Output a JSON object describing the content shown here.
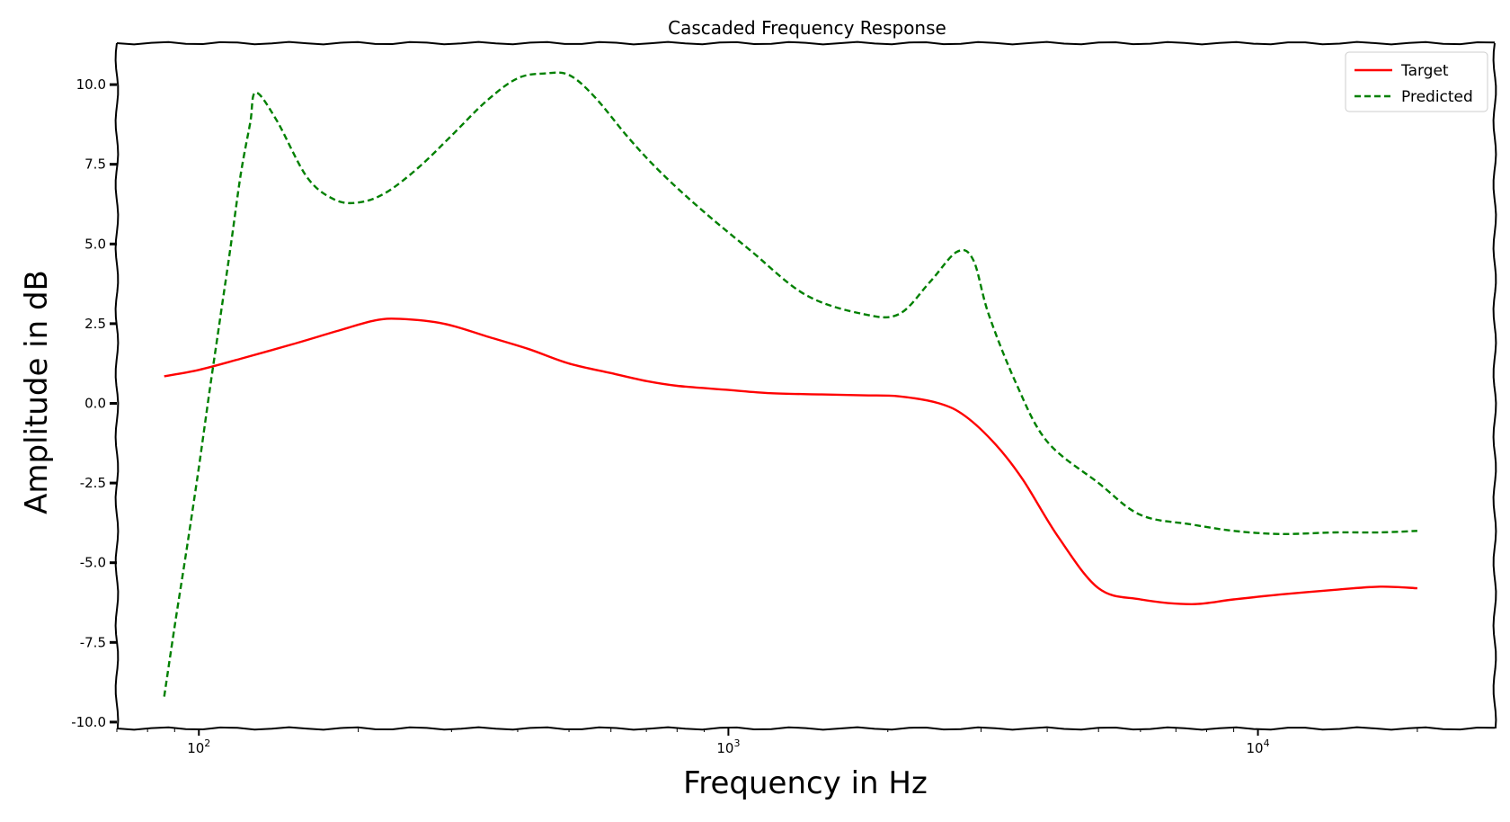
{
  "chart_data": {
    "type": "line",
    "title": "Cascaded Frequency Response",
    "xlabel": "Frequency in Hz",
    "ylabel": "Amplitude in dB",
    "xscale": "log",
    "xlim": [
      70,
      28000
    ],
    "ylim": [
      -10.2,
      11.3
    ],
    "grid": false,
    "legend_position": "top-right",
    "yticks": [
      {
        "value": -10.0,
        "label": "-10.0"
      },
      {
        "value": -7.5,
        "label": "-7.5"
      },
      {
        "value": -5.0,
        "label": "-5.0"
      },
      {
        "value": -2.5,
        "label": "-2.5"
      },
      {
        "value": 0.0,
        "label": "0.0"
      },
      {
        "value": 2.5,
        "label": "2.5"
      },
      {
        "value": 5.0,
        "label": "5.0"
      },
      {
        "value": 7.5,
        "label": "7.5"
      },
      {
        "value": 10.0,
        "label": "10.0"
      }
    ],
    "xticks": [
      {
        "value": 100,
        "base": "10",
        "exp": "2"
      },
      {
        "value": 1000,
        "base": "10",
        "exp": "3"
      },
      {
        "value": 10000,
        "base": "10",
        "exp": "4"
      }
    ],
    "series": [
      {
        "name": "Target",
        "color": "#ff0000",
        "style": "solid",
        "x": [
          86,
          100,
          120,
          150,
          185,
          215,
          240,
          290,
          350,
          420,
          500,
          600,
          700,
          800,
          1000,
          1200,
          1500,
          1800,
          2100,
          2500,
          2800,
          3200,
          3600,
          4200,
          5000,
          6000,
          7500,
          9000,
          11000,
          14000,
          17000,
          20000
        ],
        "y": [
          0.85,
          1.05,
          1.4,
          1.85,
          2.3,
          2.6,
          2.65,
          2.5,
          2.1,
          1.7,
          1.25,
          0.95,
          0.7,
          0.55,
          0.42,
          0.32,
          0.28,
          0.25,
          0.22,
          0.0,
          -0.4,
          -1.3,
          -2.4,
          -4.2,
          -5.8,
          -6.15,
          -6.3,
          -6.15,
          -6.0,
          -5.85,
          -5.75,
          -5.8
        ]
      },
      {
        "name": "Predicted",
        "color": "#008000",
        "style": "dashed",
        "x": [
          86,
          90,
          95,
          100,
          105,
          110,
          115,
          120,
          125,
          128,
          140,
          160,
          180,
          200,
          225,
          260,
          300,
          350,
          400,
          450,
          500,
          560,
          650,
          750,
          900,
          1100,
          1400,
          1800,
          2100,
          2400,
          2700,
          2900,
          3100,
          3500,
          4000,
          5000,
          6000,
          7500,
          9000,
          11000,
          14000,
          17000,
          20000
        ],
        "y": [
          -9.2,
          -7.0,
          -4.5,
          -2.0,
          0.5,
          2.8,
          5.0,
          7.2,
          8.8,
          9.75,
          8.9,
          7.1,
          6.4,
          6.3,
          6.6,
          7.4,
          8.4,
          9.5,
          10.2,
          10.35,
          10.3,
          9.6,
          8.3,
          7.2,
          6.0,
          4.8,
          3.4,
          2.8,
          2.8,
          3.8,
          4.75,
          4.5,
          2.8,
          0.6,
          -1.2,
          -2.5,
          -3.5,
          -3.8,
          -4.0,
          -4.1,
          -4.05,
          -4.05,
          -4.0
        ]
      }
    ]
  }
}
